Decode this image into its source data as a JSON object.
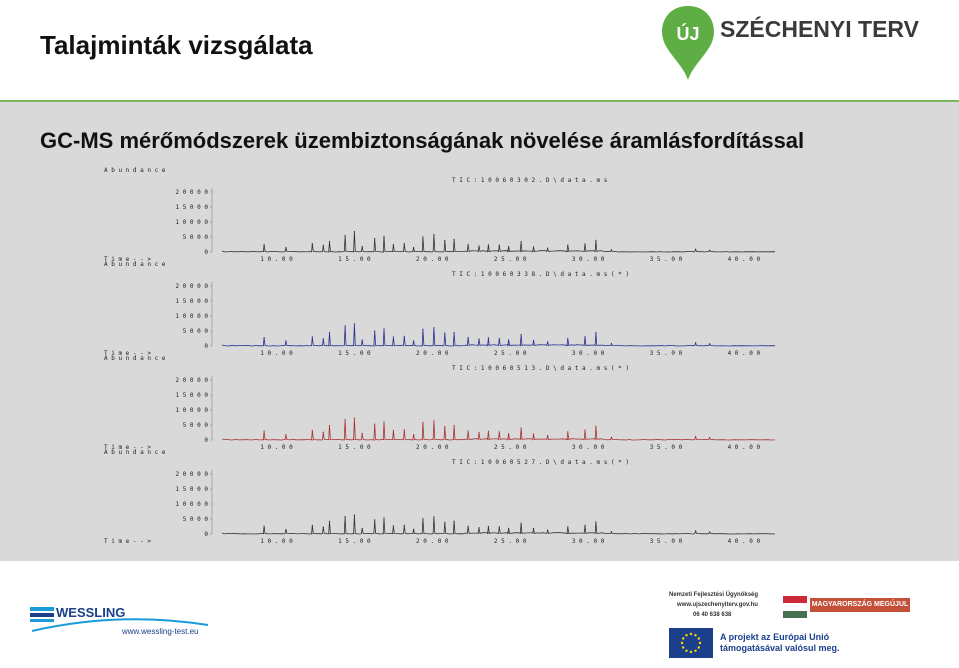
{
  "header": {
    "title": "Talajminták vizsgálata",
    "logo_text": "SZÉCHENYI TERV",
    "logo_badge": "ÚJ"
  },
  "main": {
    "subtitle": "GC-MS mérőmódszerek üzembiztonságának növelése áramlásfordítással"
  },
  "footer": {
    "wessling_name": "WESSLING",
    "wessling_url": "www.wessling-test.eu",
    "nfu_line1": "Nemzeti Fejlesztési Ügynökség",
    "nfu_line2": "www.ujszechenyiterv.gov.hu",
    "nfu_line3": "06 40 638 638",
    "badge": "MAGYARORSZÁG MEGÚJUL",
    "eu_line1": "A projekt az Európai Unió",
    "eu_line2": "támogatásával valósul meg."
  },
  "colors": {
    "accent_green": "#7bb661",
    "panel_gray": "#d9d9da",
    "brand_blue": "#1b3f8b"
  },
  "chart_data": [
    {
      "type": "line",
      "color": "#333333",
      "y_label": "Abundance",
      "x_label": "Time-->",
      "tic": "TIC: 10060302.D\\data.ms",
      "ylim": [
        0,
        20000
      ],
      "y_ticks": [
        "0",
        "5000",
        "10000",
        "15000",
        "20000"
      ],
      "xlim": [
        6.5,
        42
      ],
      "x_ticks": [
        "10.00",
        "15.00",
        "20.00",
        "25.00",
        "30.00",
        "35.00",
        "40.00"
      ],
      "peaks": [
        [
          9.2,
          2500
        ],
        [
          10.6,
          1500
        ],
        [
          12.3,
          2800
        ],
        [
          13.0,
          2200
        ],
        [
          13.4,
          3500
        ],
        [
          14.4,
          5500
        ],
        [
          15.0,
          6800
        ],
        [
          15.5,
          1800
        ],
        [
          16.3,
          4500
        ],
        [
          16.9,
          5200
        ],
        [
          17.5,
          2500
        ],
        [
          18.2,
          2800
        ],
        [
          18.8,
          1500
        ],
        [
          19.4,
          5000
        ],
        [
          20.1,
          5800
        ],
        [
          20.8,
          3800
        ],
        [
          21.4,
          4200
        ],
        [
          22.3,
          2500
        ],
        [
          23.0,
          2000
        ],
        [
          23.6,
          2400
        ],
        [
          24.3,
          2300
        ],
        [
          24.9,
          1800
        ],
        [
          25.7,
          3500
        ],
        [
          26.5,
          1700
        ],
        [
          27.4,
          1200
        ],
        [
          28.7,
          2300
        ],
        [
          29.8,
          2700
        ],
        [
          30.5,
          3900
        ],
        [
          31.5,
          700
        ],
        [
          36.9,
          900
        ],
        [
          37.8,
          600
        ]
      ]
    },
    {
      "type": "line",
      "color": "#2a2f8f",
      "y_label": "Abundance",
      "x_label": "Time-->",
      "tic": "TIC: 10060338.D\\data.ms (*)",
      "ylim": [
        0,
        20000
      ],
      "y_ticks": [
        "0",
        "5000",
        "10000",
        "15000",
        "20000"
      ],
      "xlim": [
        6.5,
        42
      ],
      "x_ticks": [
        "10.00",
        "15.00",
        "20.00",
        "25.00",
        "30.00",
        "35.00",
        "40.00"
      ],
      "peaks": [
        [
          9.2,
          2800
        ],
        [
          10.6,
          1700
        ],
        [
          12.3,
          3000
        ],
        [
          13.0,
          2400
        ],
        [
          13.4,
          4500
        ],
        [
          14.4,
          6700
        ],
        [
          15.0,
          7400
        ],
        [
          15.5,
          2000
        ],
        [
          16.3,
          5000
        ],
        [
          16.9,
          5700
        ],
        [
          17.5,
          3000
        ],
        [
          18.2,
          3200
        ],
        [
          18.8,
          1700
        ],
        [
          19.4,
          5600
        ],
        [
          20.1,
          6100
        ],
        [
          20.8,
          4300
        ],
        [
          21.4,
          4500
        ],
        [
          22.3,
          2800
        ],
        [
          23.0,
          2300
        ],
        [
          23.6,
          2700
        ],
        [
          24.3,
          2500
        ],
        [
          24.9,
          2000
        ],
        [
          25.7,
          3800
        ],
        [
          26.5,
          1900
        ],
        [
          27.4,
          1400
        ],
        [
          28.7,
          2500
        ],
        [
          29.8,
          3100
        ],
        [
          30.5,
          4500
        ],
        [
          31.5,
          800
        ],
        [
          36.9,
          1000
        ],
        [
          37.8,
          700
        ]
      ]
    },
    {
      "type": "line",
      "color": "#a83232",
      "y_label": "Abundance",
      "x_label": "Time-->",
      "tic": "TIC: 10060513.D\\data.ms (*)",
      "ylim": [
        0,
        20000
      ],
      "y_ticks": [
        "0",
        "5000",
        "10000",
        "15000",
        "20000"
      ],
      "xlim": [
        6.5,
        42
      ],
      "x_ticks": [
        "10.00",
        "15.00",
        "20.00",
        "25.00",
        "30.00",
        "35.00",
        "40.00"
      ],
      "peaks": [
        [
          9.2,
          3000
        ],
        [
          10.6,
          1800
        ],
        [
          12.3,
          3200
        ],
        [
          13.0,
          2600
        ],
        [
          13.4,
          4800
        ],
        [
          14.4,
          6900
        ],
        [
          15.0,
          7300
        ],
        [
          15.5,
          2200
        ],
        [
          16.3,
          5300
        ],
        [
          16.9,
          6000
        ],
        [
          17.5,
          3200
        ],
        [
          18.2,
          3400
        ],
        [
          18.8,
          1800
        ],
        [
          19.4,
          5900
        ],
        [
          20.1,
          6400
        ],
        [
          20.8,
          4500
        ],
        [
          21.4,
          4800
        ],
        [
          22.3,
          3000
        ],
        [
          23.0,
          2500
        ],
        [
          23.6,
          2900
        ],
        [
          24.3,
          2700
        ],
        [
          24.9,
          2100
        ],
        [
          25.7,
          4000
        ],
        [
          26.5,
          2000
        ],
        [
          27.4,
          1500
        ],
        [
          28.7,
          2700
        ],
        [
          29.8,
          3300
        ],
        [
          30.5,
          4600
        ],
        [
          31.5,
          900
        ],
        [
          36.9,
          1100
        ],
        [
          37.8,
          800
        ]
      ]
    },
    {
      "type": "line",
      "color": "#333333",
      "y_label": "Abundance",
      "x_label": "Time-->",
      "tic": "TIC: 10060527.D\\data.ms (*)",
      "ylim": [
        0,
        20000
      ],
      "y_ticks": [
        "0",
        "5000",
        "10000",
        "15000",
        "20000"
      ],
      "xlim": [
        6.5,
        42
      ],
      "x_ticks": [
        "10.00",
        "15.00",
        "20.00",
        "25.00",
        "30.00",
        "35.00",
        "40.00"
      ],
      "peaks": [
        [
          9.2,
          2600
        ],
        [
          10.6,
          1500
        ],
        [
          12.3,
          2900
        ],
        [
          13.0,
          2300
        ],
        [
          13.4,
          4200
        ],
        [
          14.4,
          5800
        ],
        [
          15.0,
          6300
        ],
        [
          15.5,
          1900
        ],
        [
          16.3,
          4700
        ],
        [
          16.9,
          5300
        ],
        [
          17.5,
          2700
        ],
        [
          18.2,
          2900
        ],
        [
          18.8,
          1600
        ],
        [
          19.4,
          5100
        ],
        [
          20.1,
          5700
        ],
        [
          20.8,
          3900
        ],
        [
          21.4,
          4300
        ],
        [
          22.3,
          2600
        ],
        [
          23.0,
          2100
        ],
        [
          23.6,
          2500
        ],
        [
          24.3,
          2400
        ],
        [
          24.9,
          1900
        ],
        [
          25.7,
          3600
        ],
        [
          26.5,
          1800
        ],
        [
          27.4,
          1300
        ],
        [
          28.7,
          2400
        ],
        [
          29.8,
          2900
        ],
        [
          30.5,
          4000
        ],
        [
          31.5,
          750
        ],
        [
          36.9,
          950
        ],
        [
          37.8,
          650
        ]
      ]
    }
  ]
}
